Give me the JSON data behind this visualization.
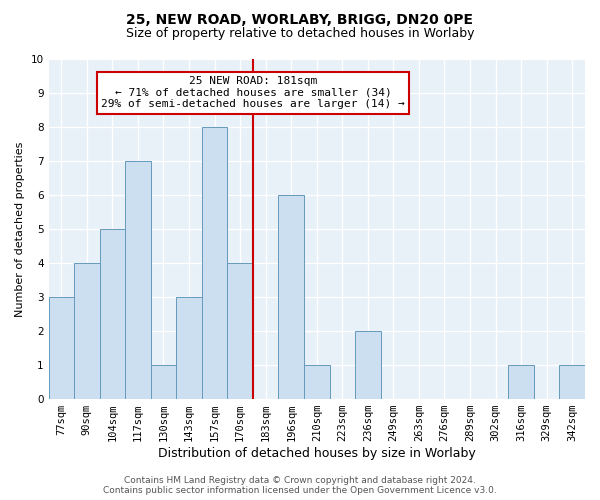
{
  "title1": "25, NEW ROAD, WORLABY, BRIGG, DN20 0PE",
  "title2": "Size of property relative to detached houses in Worlaby",
  "xlabel": "Distribution of detached houses by size in Worlaby",
  "ylabel": "Number of detached properties",
  "categories": [
    "77sqm",
    "90sqm",
    "104sqm",
    "117sqm",
    "130sqm",
    "143sqm",
    "157sqm",
    "170sqm",
    "183sqm",
    "196sqm",
    "210sqm",
    "223sqm",
    "236sqm",
    "249sqm",
    "263sqm",
    "276sqm",
    "289sqm",
    "302sqm",
    "316sqm",
    "329sqm",
    "342sqm"
  ],
  "values": [
    3,
    4,
    5,
    7,
    1,
    3,
    8,
    4,
    0,
    6,
    1,
    0,
    2,
    0,
    0,
    0,
    0,
    0,
    1,
    0,
    1
  ],
  "bar_color": "#ccdff0",
  "bar_edge_color": "#6699bb",
  "ref_line_index": 8,
  "annotation_text": "25 NEW ROAD: 181sqm\n← 71% of detached houses are smaller (34)\n29% of semi-detached houses are larger (14) →",
  "annotation_box_color": "#ffffff",
  "annotation_box_edge_color": "#cc0000",
  "ylim": [
    0,
    10
  ],
  "yticks": [
    0,
    1,
    2,
    3,
    4,
    5,
    6,
    7,
    8,
    9,
    10
  ],
  "background_color": "#e8f0f8",
  "grid_color": "#ffffff",
  "footer_line1": "Contains HM Land Registry data © Crown copyright and database right 2024.",
  "footer_line2": "Contains public sector information licensed under the Open Government Licence v3.0.",
  "title1_fontsize": 10,
  "title2_fontsize": 9,
  "xlabel_fontsize": 9,
  "ylabel_fontsize": 8,
  "tick_fontsize": 7.5,
  "footer_fontsize": 6.5,
  "annotation_fontsize": 8
}
